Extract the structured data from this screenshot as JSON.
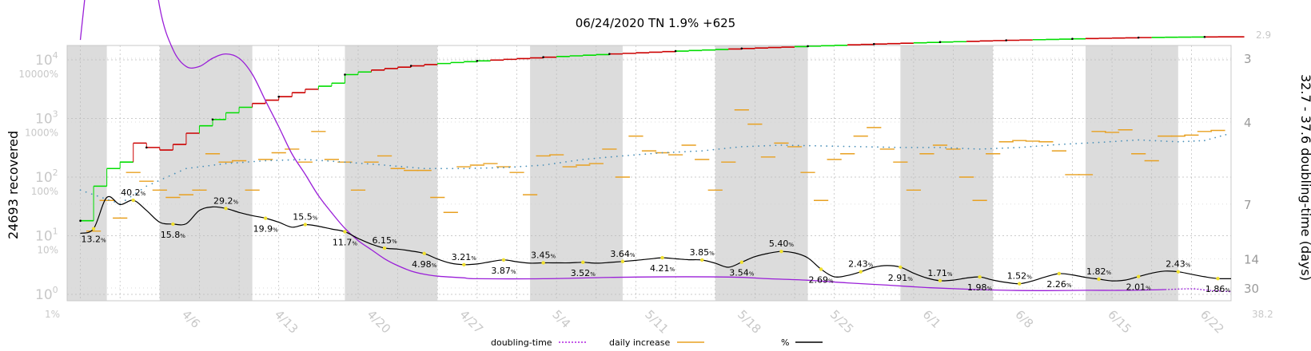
{
  "chart_data": {
    "type": "line",
    "title": "06/24/2020 TN 1.9% +625",
    "ylabel_left": "24693 recovered",
    "ylabel_right": "32.7 - 37.6 doubling-time (days)",
    "x_ticks": [
      "4/6",
      "4/13",
      "4/20",
      "4/27",
      "5/4",
      "5/11",
      "5/18",
      "5/25",
      "6/1",
      "6/8",
      "6/15",
      "6/22"
    ],
    "x_corner_left": "1%",
    "y_left_ticks": [
      {
        "base": "10",
        "exp": "0"
      },
      {
        "base": "10",
        "exp": "1"
      },
      {
        "base": "10",
        "exp": "2"
      },
      {
        "base": "10",
        "exp": "3"
      },
      {
        "base": "10",
        "exp": "4"
      }
    ],
    "y_left_pct_ticks": [
      "10%",
      "100%",
      "1000%",
      "10000%"
    ],
    "y_right_ticks": [
      "3",
      "4",
      "7",
      "14",
      "30"
    ],
    "y_right_top": "2.9",
    "y_right_bottom": "38.2",
    "shaded_weeks": [
      [
        "3/28",
        "3/31"
      ],
      [
        "4/4",
        "4/11"
      ],
      [
        "4/18",
        "4/25"
      ],
      [
        "5/2",
        "5/9"
      ],
      [
        "5/16",
        "5/23"
      ],
      [
        "5/30",
        "6/6"
      ],
      [
        "6/13",
        "6/20"
      ]
    ],
    "legend": [
      {
        "label": "doubling-time",
        "color": "#b020e0",
        "style": "dotted"
      },
      {
        "label": "daily increase",
        "color": "#e8a020",
        "style": "solid"
      },
      {
        "label": "%",
        "color": "#000000",
        "style": "solid"
      }
    ],
    "pct_annotations": [
      {
        "date": "3/30",
        "value": "13.2"
      },
      {
        "date": "4/2",
        "value": "40.2"
      },
      {
        "date": "4/5",
        "value": "15.8"
      },
      {
        "date": "4/9",
        "value": "29.2"
      },
      {
        "date": "4/12",
        "value": "19.9"
      },
      {
        "date": "4/15",
        "value": "15.5"
      },
      {
        "date": "4/18",
        "value": "11.7"
      },
      {
        "date": "4/21",
        "value": "6.15"
      },
      {
        "date": "4/24",
        "value": "4.98"
      },
      {
        "date": "4/27",
        "value": "3.21"
      },
      {
        "date": "4/30",
        "value": "3.87"
      },
      {
        "date": "5/3",
        "value": "3.45"
      },
      {
        "date": "5/6",
        "value": "3.52"
      },
      {
        "date": "5/9",
        "value": "3.64"
      },
      {
        "date": "5/12",
        "value": "4.21"
      },
      {
        "date": "5/15",
        "value": "3.85"
      },
      {
        "date": "5/18",
        "value": "3.54"
      },
      {
        "date": "5/21",
        "value": "5.40"
      },
      {
        "date": "5/24",
        "value": "2.69"
      },
      {
        "date": "5/27",
        "value": "2.43"
      },
      {
        "date": "5/30",
        "value": "2.91"
      },
      {
        "date": "6/2",
        "value": "1.71"
      },
      {
        "date": "6/5",
        "value": "1.98"
      },
      {
        "date": "6/8",
        "value": "1.52"
      },
      {
        "date": "6/11",
        "value": "2.26"
      },
      {
        "date": "6/14",
        "value": "1.82"
      },
      {
        "date": "6/17",
        "value": "2.01"
      },
      {
        "date": "6/20",
        "value": "2.43"
      },
      {
        "date": "6/23",
        "value": "1.86"
      }
    ],
    "pct_series": [
      [
        "3/29",
        11
      ],
      [
        "3/30",
        13.2
      ],
      [
        "3/31",
        45
      ],
      [
        "4/1",
        34
      ],
      [
        "4/2",
        40.2
      ],
      [
        "4/3",
        27
      ],
      [
        "4/4",
        17
      ],
      [
        "4/5",
        15.8
      ],
      [
        "4/6",
        16
      ],
      [
        "4/7",
        27
      ],
      [
        "4/8",
        31
      ],
      [
        "4/9",
        29.2
      ],
      [
        "4/10",
        25
      ],
      [
        "4/11",
        22
      ],
      [
        "4/12",
        19.9
      ],
      [
        "4/13",
        17
      ],
      [
        "4/14",
        14
      ],
      [
        "4/15",
        15.5
      ],
      [
        "4/16",
        14.5
      ],
      [
        "4/17",
        13
      ],
      [
        "4/18",
        11.7
      ],
      [
        "4/19",
        9
      ],
      [
        "4/20",
        7.2
      ],
      [
        "4/21",
        6.15
      ],
      [
        "4/22",
        5.9
      ],
      [
        "4/23",
        5.5
      ],
      [
        "4/24",
        4.98
      ],
      [
        "4/25",
        4.0
      ],
      [
        "4/26",
        3.4
      ],
      [
        "4/27",
        3.21
      ],
      [
        "4/28",
        3.3
      ],
      [
        "4/29",
        3.6
      ],
      [
        "4/30",
        3.87
      ],
      [
        "5/1",
        3.6
      ],
      [
        "5/2",
        3.4
      ],
      [
        "5/3",
        3.45
      ],
      [
        "5/4",
        3.45
      ],
      [
        "5/5",
        3.45
      ],
      [
        "5/6",
        3.52
      ],
      [
        "5/7",
        3.4
      ],
      [
        "5/8",
        3.5
      ],
      [
        "5/9",
        3.64
      ],
      [
        "5/10",
        3.8
      ],
      [
        "5/11",
        4.0
      ],
      [
        "5/12",
        4.21
      ],
      [
        "5/13",
        4.05
      ],
      [
        "5/14",
        3.9
      ],
      [
        "5/15",
        3.85
      ],
      [
        "5/16",
        3.4
      ],
      [
        "5/17",
        2.9
      ],
      [
        "5/18",
        3.54
      ],
      [
        "5/19",
        4.4
      ],
      [
        "5/20",
        5.0
      ],
      [
        "5/21",
        5.4
      ],
      [
        "5/22",
        5.1
      ],
      [
        "5/23",
        4.2
      ],
      [
        "5/24",
        2.69
      ],
      [
        "5/25",
        2.0
      ],
      [
        "5/26",
        2.1
      ],
      [
        "5/27",
        2.43
      ],
      [
        "5/28",
        2.9
      ],
      [
        "5/29",
        3.1
      ],
      [
        "5/30",
        2.91
      ],
      [
        "5/31",
        2.3
      ],
      [
        "6/1",
        1.9
      ],
      [
        "6/2",
        1.71
      ],
      [
        "6/3",
        1.75
      ],
      [
        "6/4",
        1.9
      ],
      [
        "6/5",
        1.98
      ],
      [
        "6/6",
        1.75
      ],
      [
        "6/7",
        1.6
      ],
      [
        "6/8",
        1.52
      ],
      [
        "6/9",
        1.7
      ],
      [
        "6/10",
        2.0
      ],
      [
        "6/11",
        2.26
      ],
      [
        "6/12",
        2.15
      ],
      [
        "6/13",
        1.95
      ],
      [
        "6/14",
        1.82
      ],
      [
        "6/15",
        1.7
      ],
      [
        "6/16",
        1.75
      ],
      [
        "6/17",
        2.01
      ],
      [
        "6/18",
        2.3
      ],
      [
        "6/19",
        2.5
      ],
      [
        "6/20",
        2.43
      ],
      [
        "6/21",
        2.2
      ],
      [
        "6/22",
        2.0
      ],
      [
        "6/23",
        1.86
      ],
      [
        "6/24",
        1.85
      ]
    ],
    "doubling_series": [
      [
        "3/29",
        2.8
      ],
      [
        "3/30",
        1.9
      ],
      [
        "3/31",
        1.35
      ],
      [
        "4/1",
        1.3
      ],
      [
        "4/2",
        1.55
      ],
      [
        "4/3",
        1.9
      ],
      [
        "4/4",
        2.5
      ],
      [
        "4/5",
        2.9
      ],
      [
        "4/6",
        3.1
      ],
      [
        "4/7",
        3.1
      ],
      [
        "4/8",
        3.0
      ],
      [
        "4/9",
        2.95
      ],
      [
        "4/10",
        3.0
      ],
      [
        "4/11",
        3.2
      ],
      [
        "4/12",
        3.6
      ],
      [
        "4/13",
        4.1
      ],
      [
        "4/14",
        4.8
      ],
      [
        "4/15",
        5.5
      ],
      [
        "4/16",
        6.5
      ],
      [
        "4/17",
        7.6
      ],
      [
        "4/18",
        9.0
      ],
      [
        "4/19",
        10.5
      ],
      [
        "4/20",
        12
      ],
      [
        "4/21",
        14
      ],
      [
        "4/22",
        16
      ],
      [
        "4/23",
        18
      ],
      [
        "4/24",
        19.5
      ],
      [
        "4/25",
        20.5
      ],
      [
        "4/26",
        21
      ],
      [
        "4/27",
        21.5
      ],
      [
        "4/28",
        22
      ],
      [
        "5/3",
        22
      ],
      [
        "5/10",
        21
      ],
      [
        "5/17",
        21
      ],
      [
        "5/20",
        22
      ],
      [
        "5/23",
        23
      ],
      [
        "5/26",
        25
      ],
      [
        "5/29",
        27
      ],
      [
        "6/1",
        29.5
      ],
      [
        "6/4",
        31.5
      ],
      [
        "6/7",
        33
      ],
      [
        "6/10",
        33.5
      ],
      [
        "6/13",
        33
      ],
      [
        "6/16",
        33
      ],
      [
        "6/19",
        32
      ],
      [
        "6/21",
        31
      ],
      [
        "6/22",
        32.5
      ],
      [
        "6/23",
        34
      ],
      [
        "6/24",
        35
      ]
    ],
    "recovered_steps": [
      [
        "3/29",
        18
      ],
      [
        "3/30",
        70
      ],
      [
        "3/31",
        140
      ],
      [
        "4/1",
        180
      ],
      [
        "4/2",
        380
      ],
      [
        "4/3",
        320
      ],
      [
        "4/4",
        290
      ],
      [
        "4/5",
        360
      ],
      [
        "4/6",
        560
      ],
      [
        "4/7",
        750
      ],
      [
        "4/8",
        960
      ],
      [
        "4/9",
        1250
      ],
      [
        "4/10",
        1550
      ],
      [
        "4/11",
        1800
      ],
      [
        "4/12",
        2050
      ],
      [
        "4/13",
        2350
      ],
      [
        "4/14",
        2750
      ],
      [
        "4/15",
        3150
      ],
      [
        "4/16",
        3550
      ],
      [
        "4/17",
        4000
      ],
      [
        "4/18",
        5600
      ],
      [
        "4/19",
        6200
      ],
      [
        "4/20",
        6700
      ],
      [
        "4/21",
        7100
      ],
      [
        "4/22",
        7500
      ],
      [
        "4/23",
        7900
      ],
      [
        "4/24",
        8300
      ],
      [
        "4/25",
        8650
      ],
      [
        "4/26",
        9000
      ],
      [
        "4/27",
        9300
      ],
      [
        "4/28",
        9600
      ],
      [
        "4/29",
        9900
      ],
      [
        "4/30",
        10200
      ],
      [
        "5/1",
        10500
      ],
      [
        "5/2",
        10800
      ],
      [
        "5/3",
        11100
      ],
      [
        "5/4",
        11400
      ],
      [
        "5/5",
        11700
      ],
      [
        "5/6",
        12000
      ],
      [
        "5/7",
        12300
      ],
      [
        "5/8",
        12600
      ],
      [
        "5/9",
        12900
      ],
      [
        "5/10",
        13200
      ],
      [
        "5/11",
        13500
      ],
      [
        "5/12",
        13800
      ],
      [
        "5/13",
        14100
      ],
      [
        "5/14",
        14400
      ],
      [
        "5/15",
        14700
      ],
      [
        "5/16",
        15000
      ],
      [
        "5/17",
        15300
      ],
      [
        "5/18",
        15600
      ],
      [
        "5/19",
        15900
      ],
      [
        "5/20",
        16200
      ],
      [
        "5/21",
        16500
      ],
      [
        "5/22",
        16800
      ],
      [
        "5/23",
        17100
      ],
      [
        "5/24",
        17400
      ],
      [
        "5/25",
        17700
      ],
      [
        "5/26",
        18000
      ],
      [
        "5/27",
        18300
      ],
      [
        "5/28",
        18600
      ],
      [
        "5/29",
        18900
      ],
      [
        "5/30",
        19200
      ],
      [
        "5/31",
        19500
      ],
      [
        "6/1",
        19800
      ],
      [
        "6/2",
        20100
      ],
      [
        "6/3",
        20400
      ],
      [
        "6/4",
        20700
      ],
      [
        "6/5",
        21000
      ],
      [
        "6/6",
        21300
      ],
      [
        "6/7",
        21550
      ],
      [
        "6/8",
        21800
      ],
      [
        "6/9",
        22050
      ],
      [
        "6/10",
        22300
      ],
      [
        "6/11",
        22550
      ],
      [
        "6/12",
        22800
      ],
      [
        "6/13",
        23050
      ],
      [
        "6/14",
        23300
      ],
      [
        "6/15",
        23550
      ],
      [
        "6/16",
        23750
      ],
      [
        "6/17",
        23950
      ],
      [
        "6/18",
        24100
      ],
      [
        "6/19",
        24250
      ],
      [
        "6/20",
        24400
      ],
      [
        "6/21",
        24500
      ],
      [
        "6/22",
        24600
      ],
      [
        "6/23",
        24650
      ],
      [
        "6/24",
        24693
      ]
    ],
    "daily_increase": [
      [
        "3/30",
        12
      ],
      [
        "3/31",
        40
      ],
      [
        "4/1",
        20
      ],
      [
        "4/2",
        120
      ],
      [
        "4/3",
        85
      ],
      [
        "4/4",
        60
      ],
      [
        "4/5",
        45
      ],
      [
        "4/6",
        50
      ],
      [
        "4/7",
        60
      ],
      [
        "4/8",
        250
      ],
      [
        "4/9",
        180
      ],
      [
        "4/10",
        190
      ],
      [
        "4/11",
        60
      ],
      [
        "4/12",
        200
      ],
      [
        "4/13",
        260
      ],
      [
        "4/14",
        300
      ],
      [
        "4/15",
        180
      ],
      [
        "4/16",
        600
      ],
      [
        "4/17",
        200
      ],
      [
        "4/18",
        180
      ],
      [
        "4/19",
        60
      ],
      [
        "4/20",
        180
      ],
      [
        "4/21",
        230
      ],
      [
        "4/22",
        140
      ],
      [
        "4/23",
        130
      ],
      [
        "4/24",
        130
      ],
      [
        "4/25",
        45
      ],
      [
        "4/26",
        25
      ],
      [
        "4/27",
        150
      ],
      [
        "4/28",
        160
      ],
      [
        "4/29",
        170
      ],
      [
        "4/30",
        150
      ],
      [
        "5/1",
        120
      ],
      [
        "5/2",
        50
      ],
      [
        "5/3",
        230
      ],
      [
        "5/4",
        240
      ],
      [
        "5/5",
        150
      ],
      [
        "5/6",
        160
      ],
      [
        "5/7",
        170
      ],
      [
        "5/8",
        300
      ],
      [
        "5/9",
        100
      ],
      [
        "5/10",
        500
      ],
      [
        "5/11",
        280
      ],
      [
        "5/12",
        260
      ],
      [
        "5/13",
        240
      ],
      [
        "5/14",
        350
      ],
      [
        "5/15",
        200
      ],
      [
        "5/16",
        60
      ],
      [
        "5/17",
        180
      ],
      [
        "5/18",
        1400
      ],
      [
        "5/19",
        800
      ],
      [
        "5/20",
        220
      ],
      [
        "5/21",
        380
      ],
      [
        "5/22",
        330
      ],
      [
        "5/23",
        120
      ],
      [
        "5/24",
        40
      ],
      [
        "5/25",
        200
      ],
      [
        "5/26",
        250
      ],
      [
        "5/27",
        500
      ],
      [
        "5/28",
        700
      ],
      [
        "5/29",
        300
      ],
      [
        "5/30",
        180
      ],
      [
        "5/31",
        60
      ],
      [
        "6/1",
        250
      ],
      [
        "6/2",
        350
      ],
      [
        "6/3",
        300
      ],
      [
        "6/4",
        100
      ],
      [
        "6/5",
        40
      ],
      [
        "6/6",
        250
      ],
      [
        "6/7",
        400
      ],
      [
        "6/8",
        420
      ],
      [
        "6/9",
        410
      ],
      [
        "6/10",
        400
      ],
      [
        "6/11",
        280
      ],
      [
        "6/12",
        110
      ],
      [
        "6/13",
        110
      ],
      [
        "6/14",
        600
      ],
      [
        "6/15",
        580
      ],
      [
        "6/16",
        640
      ],
      [
        "6/17",
        250
      ],
      [
        "6/18",
        190
      ],
      [
        "6/19",
        500
      ],
      [
        "6/20",
        500
      ],
      [
        "6/21",
        520
      ],
      [
        "6/22",
        600
      ],
      [
        "6/23",
        625
      ]
    ],
    "trend_dots": [
      [
        "3/29",
        60
      ],
      [
        "4/1",
        35
      ],
      [
        "4/3",
        70
      ],
      [
        "4/6",
        140
      ],
      [
        "4/9",
        170
      ],
      [
        "4/12",
        190
      ],
      [
        "4/15",
        200
      ],
      [
        "4/18",
        180
      ],
      [
        "4/21",
        160
      ],
      [
        "4/24",
        140
      ],
      [
        "4/27",
        140
      ],
      [
        "4/30",
        145
      ],
      [
        "5/3",
        160
      ],
      [
        "5/6",
        200
      ],
      [
        "5/9",
        230
      ],
      [
        "5/12",
        260
      ],
      [
        "5/15",
        280
      ],
      [
        "5/18",
        330
      ],
      [
        "5/21",
        350
      ],
      [
        "5/24",
        340
      ],
      [
        "5/27",
        330
      ],
      [
        "5/30",
        320
      ],
      [
        "6/2",
        320
      ],
      [
        "6/5",
        300
      ],
      [
        "6/8",
        320
      ],
      [
        "6/11",
        360
      ],
      [
        "6/14",
        390
      ],
      [
        "6/17",
        430
      ],
      [
        "6/20",
        400
      ],
      [
        "6/22",
        420
      ],
      [
        "6/24",
        560
      ]
    ],
    "colors": {
      "pct_line": "#000000",
      "doubling_line": "#9a1fd8",
      "recovered_up": "#00dd00",
      "recovered_down": "#cc0000",
      "daily_increase": "#e8a020",
      "trend_dots": "#4a90b8",
      "pct_dot": "#f0e030",
      "shade": "#dcdcdc"
    }
  }
}
